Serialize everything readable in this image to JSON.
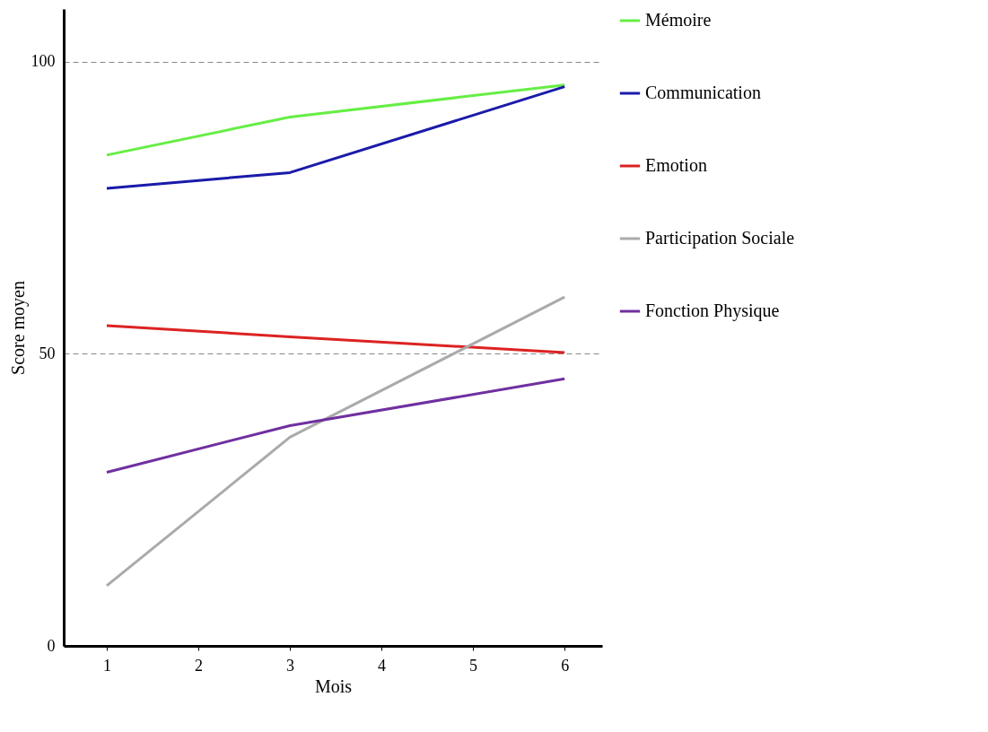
{
  "chart_data": {
    "type": "line",
    "xlabel": "Mois",
    "ylabel": "Score moyen",
    "x": [
      1,
      3,
      6
    ],
    "series": [
      {
        "name": "Mémoire",
        "color": "#66ee44",
        "values": [
          84,
          90.5,
          96
        ]
      },
      {
        "name": "Communication",
        "color": "#1a1aaa",
        "values": [
          78.3,
          81,
          95.7
        ]
      },
      {
        "name": "Emotion",
        "color": "#dd2222",
        "values": [
          54.8,
          52.9,
          50.2
        ]
      },
      {
        "name": "Participation Sociale",
        "color": "#aaaaaa",
        "values": [
          10.3,
          35.7,
          59.7
        ]
      },
      {
        "name": "Fonction Physique",
        "color": "#7030a0",
        "values": [
          29.7,
          37.7,
          45.7
        ]
      }
    ],
    "xlim": [
      0.53,
      6.41
    ],
    "xticks": [
      1,
      2,
      3,
      4,
      5,
      6
    ],
    "ylim": [
      0,
      109
    ],
    "yticks": [
      0,
      50,
      100
    ],
    "grid": "y",
    "legend": "right",
    "marker": "none",
    "line_style": "solid"
  }
}
